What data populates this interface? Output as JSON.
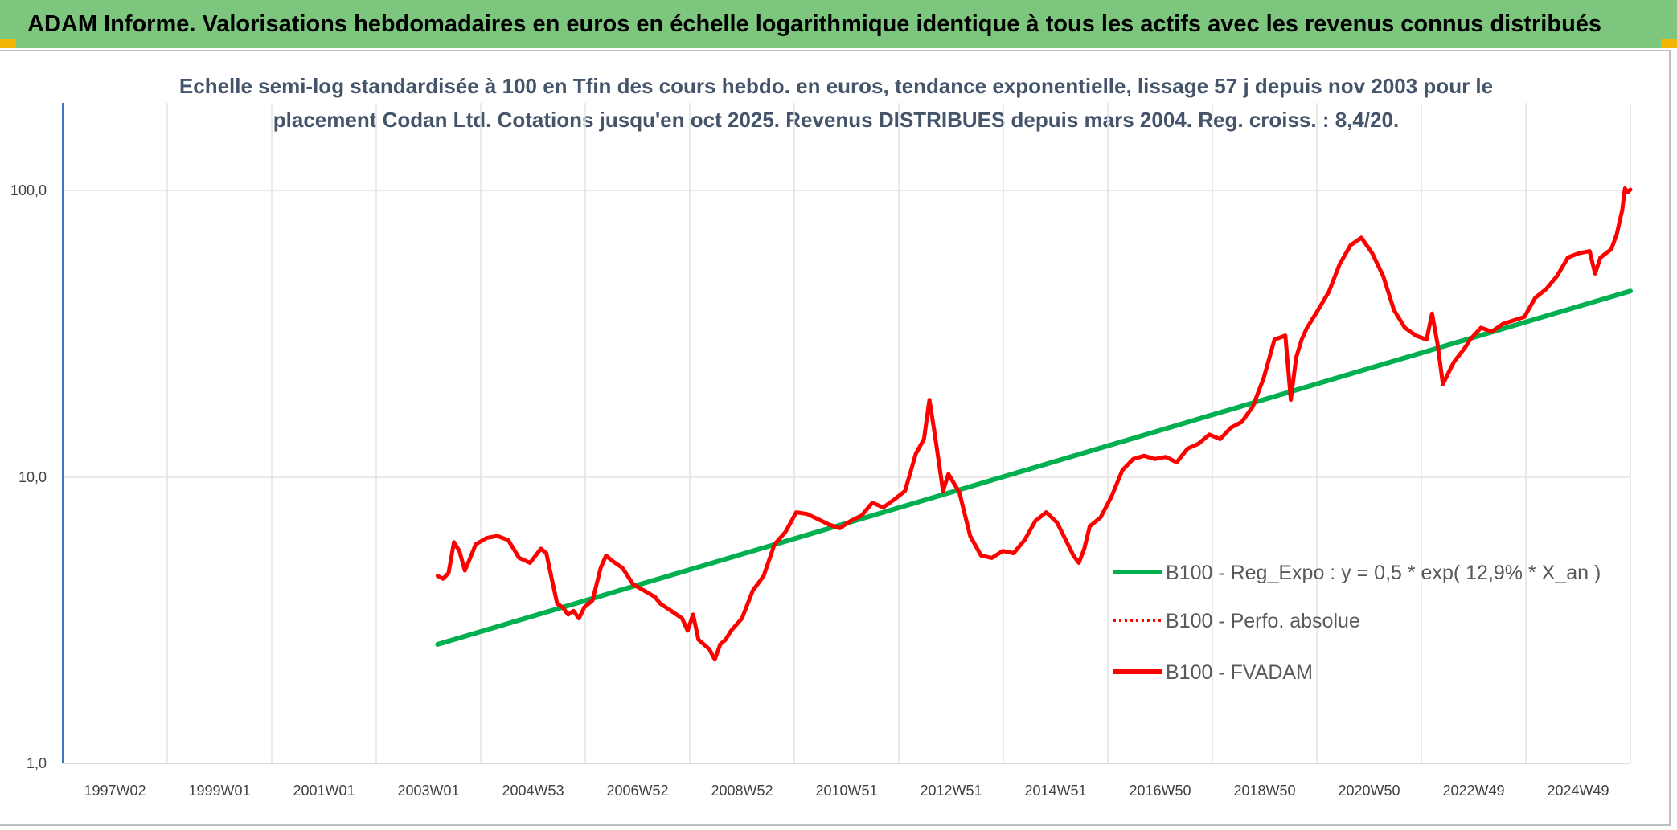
{
  "header": {
    "banner_text": "ADAM Informe. Valorisations hebdomadaires en euros en échelle logarithmique identique à tous les actifs avec les revenus connus distribués",
    "banner_color": "#7dc67e",
    "corner_color": "#f2b705"
  },
  "chart_data": {
    "type": "line",
    "title_lines": [
      "Echelle semi-log standardisée à 100 en Tfin des cours hebdo. en euros, tendance exponentielle, lissage 57 j depuis nov 2003 pour le",
      "placement Codan Ltd. Cotations jusqu'en oct 2025. Revenus DISTRIBUES depuis mars 2004. Reg. croiss. : 8,4/20."
    ],
    "y_scale": "log",
    "ylim": [
      1,
      200
    ],
    "y_ticks": [
      "1,0",
      "10,0",
      "100,0"
    ],
    "xlim": [
      1997.0,
      2025.85
    ],
    "x_ticks": [
      "1997W02",
      "1999W01",
      "2001W01",
      "2003W01",
      "2004W53",
      "2006W52",
      "2008W52",
      "2010W51",
      "2012W51",
      "2014W51",
      "2016W50",
      "2018W50",
      "2020W50",
      "2022W49",
      "2024W49"
    ],
    "grid": "vertical and horizontal",
    "legend_position": "right-middle",
    "series": [
      {
        "name": "B100 - Reg_Expo : y = 0,5 * exp( 12,9% *  X_an )",
        "color": "#00b050",
        "style": "solid",
        "x": [
          2003.9,
          2025.85
        ],
        "y": [
          2.6,
          44.3
        ]
      },
      {
        "name": "B100 - Perfo. absolue",
        "color": "#ff0000",
        "style": "dotted",
        "x": [],
        "y": []
      },
      {
        "name": "B100 - FVADAM",
        "color": "#ff0000",
        "style": "solid",
        "x": [
          2003.9,
          2004.0,
          2004.1,
          2004.2,
          2004.3,
          2004.4,
          2004.5,
          2004.6,
          2004.8,
          2005.0,
          2005.2,
          2005.4,
          2005.6,
          2005.8,
          2005.9,
          2006.0,
          2006.1,
          2006.2,
          2006.3,
          2006.4,
          2006.5,
          2006.6,
          2006.75,
          2006.9,
          2007.0,
          2007.1,
          2007.3,
          2007.5,
          2007.7,
          2007.9,
          2008.0,
          2008.2,
          2008.4,
          2008.5,
          2008.6,
          2008.7,
          2008.9,
          2009.0,
          2009.1,
          2009.2,
          2009.3,
          2009.5,
          2009.7,
          2009.9,
          2010.1,
          2010.3,
          2010.5,
          2010.7,
          2010.9,
          2011.1,
          2011.3,
          2011.5,
          2011.7,
          2011.9,
          2012.1,
          2012.3,
          2012.5,
          2012.7,
          2012.85,
          2012.95,
          2013.05,
          2013.2,
          2013.3,
          2013.5,
          2013.7,
          2013.9,
          2014.1,
          2014.3,
          2014.5,
          2014.7,
          2014.9,
          2015.1,
          2015.3,
          2015.5,
          2015.6,
          2015.7,
          2015.8,
          2015.9,
          2016.1,
          2016.3,
          2016.5,
          2016.7,
          2016.9,
          2017.1,
          2017.3,
          2017.5,
          2017.7,
          2017.9,
          2018.1,
          2018.3,
          2018.5,
          2018.7,
          2018.9,
          2019.1,
          2019.3,
          2019.5,
          2019.6,
          2019.7,
          2019.8,
          2019.9,
          2020.1,
          2020.3,
          2020.5,
          2020.7,
          2020.9,
          2021.1,
          2021.3,
          2021.5,
          2021.7,
          2021.9,
          2022.1,
          2022.2,
          2022.3,
          2022.4,
          2022.6,
          2022.8,
          2022.9,
          2023.1,
          2023.3,
          2023.5,
          2023.7,
          2023.9,
          2024.1,
          2024.3,
          2024.5,
          2024.7,
          2024.9,
          2025.1,
          2025.2,
          2025.3,
          2025.5,
          2025.6,
          2025.7,
          2025.75,
          2025.8,
          2025.85
        ],
        "y": [
          4.5,
          4.4,
          4.6,
          5.9,
          5.5,
          4.7,
          5.2,
          5.8,
          6.1,
          6.2,
          6.0,
          5.2,
          5.0,
          5.6,
          5.4,
          4.4,
          3.6,
          3.5,
          3.3,
          3.4,
          3.2,
          3.5,
          3.7,
          4.8,
          5.3,
          5.1,
          4.8,
          4.2,
          4.0,
          3.8,
          3.6,
          3.4,
          3.2,
          2.9,
          3.3,
          2.7,
          2.5,
          2.3,
          2.6,
          2.7,
          2.9,
          3.2,
          4.0,
          4.5,
          5.8,
          6.4,
          7.5,
          7.4,
          7.1,
          6.8,
          6.6,
          7.0,
          7.3,
          8.1,
          7.8,
          8.3,
          8.9,
          12.0,
          13.5,
          18.5,
          14.0,
          8.9,
          10.2,
          8.8,
          6.2,
          5.3,
          5.2,
          5.5,
          5.4,
          6.0,
          7.0,
          7.5,
          6.9,
          5.8,
          5.3,
          5.0,
          5.6,
          6.7,
          7.2,
          8.5,
          10.5,
          11.5,
          11.8,
          11.5,
          11.7,
          11.2,
          12.5,
          13.0,
          14.0,
          13.5,
          14.8,
          15.5,
          17.5,
          22.0,
          30.0,
          31.0,
          18.5,
          26.0,
          30.0,
          33.0,
          38.0,
          44.0,
          55.0,
          64.0,
          68.0,
          60.0,
          50.0,
          38.0,
          33.0,
          31.0,
          30.0,
          37.0,
          29.0,
          21.0,
          25.0,
          28.0,
          30.0,
          33.0,
          32.0,
          34.0,
          35.0,
          36.0,
          42.0,
          45.0,
          50.0,
          58.0,
          60.0,
          61.0,
          51.0,
          58.0,
          62.0,
          70.0,
          85.0,
          101.0,
          98.0,
          100.0
        ]
      }
    ]
  }
}
